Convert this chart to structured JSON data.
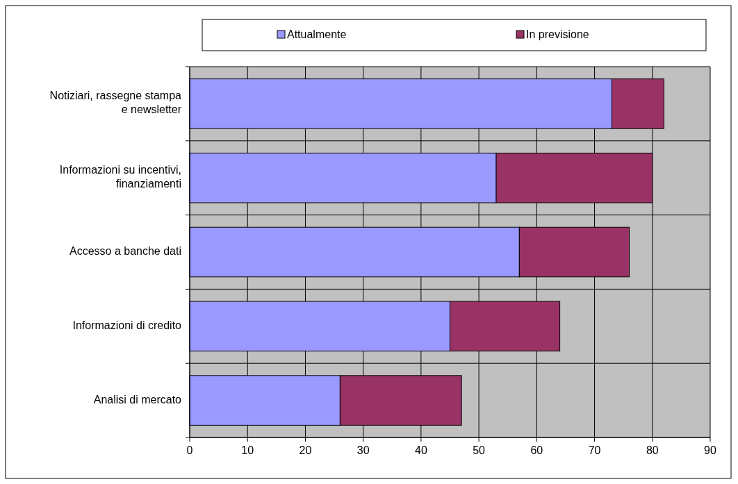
{
  "chart_data": {
    "type": "bar",
    "orientation": "horizontal",
    "stacked": true,
    "categories": [
      "Notiziari, rassegne stampa e newsletter",
      "Informazioni su incentivi, finanziamenti",
      "Accesso a banche dati",
      "Informazioni di credito",
      "Analisi di mercato"
    ],
    "series": [
      {
        "name": "Attualmente",
        "color": "#9999ff",
        "values": [
          73,
          53,
          57,
          45,
          26
        ]
      },
      {
        "name": "In previsione",
        "color": "#993366",
        "values": [
          9,
          27,
          19,
          19,
          21
        ]
      }
    ],
    "xlim": [
      0,
      90
    ],
    "xticks": [
      0,
      10,
      20,
      30,
      40,
      50,
      60,
      70,
      80,
      90
    ],
    "grid": true,
    "legend": "top"
  }
}
